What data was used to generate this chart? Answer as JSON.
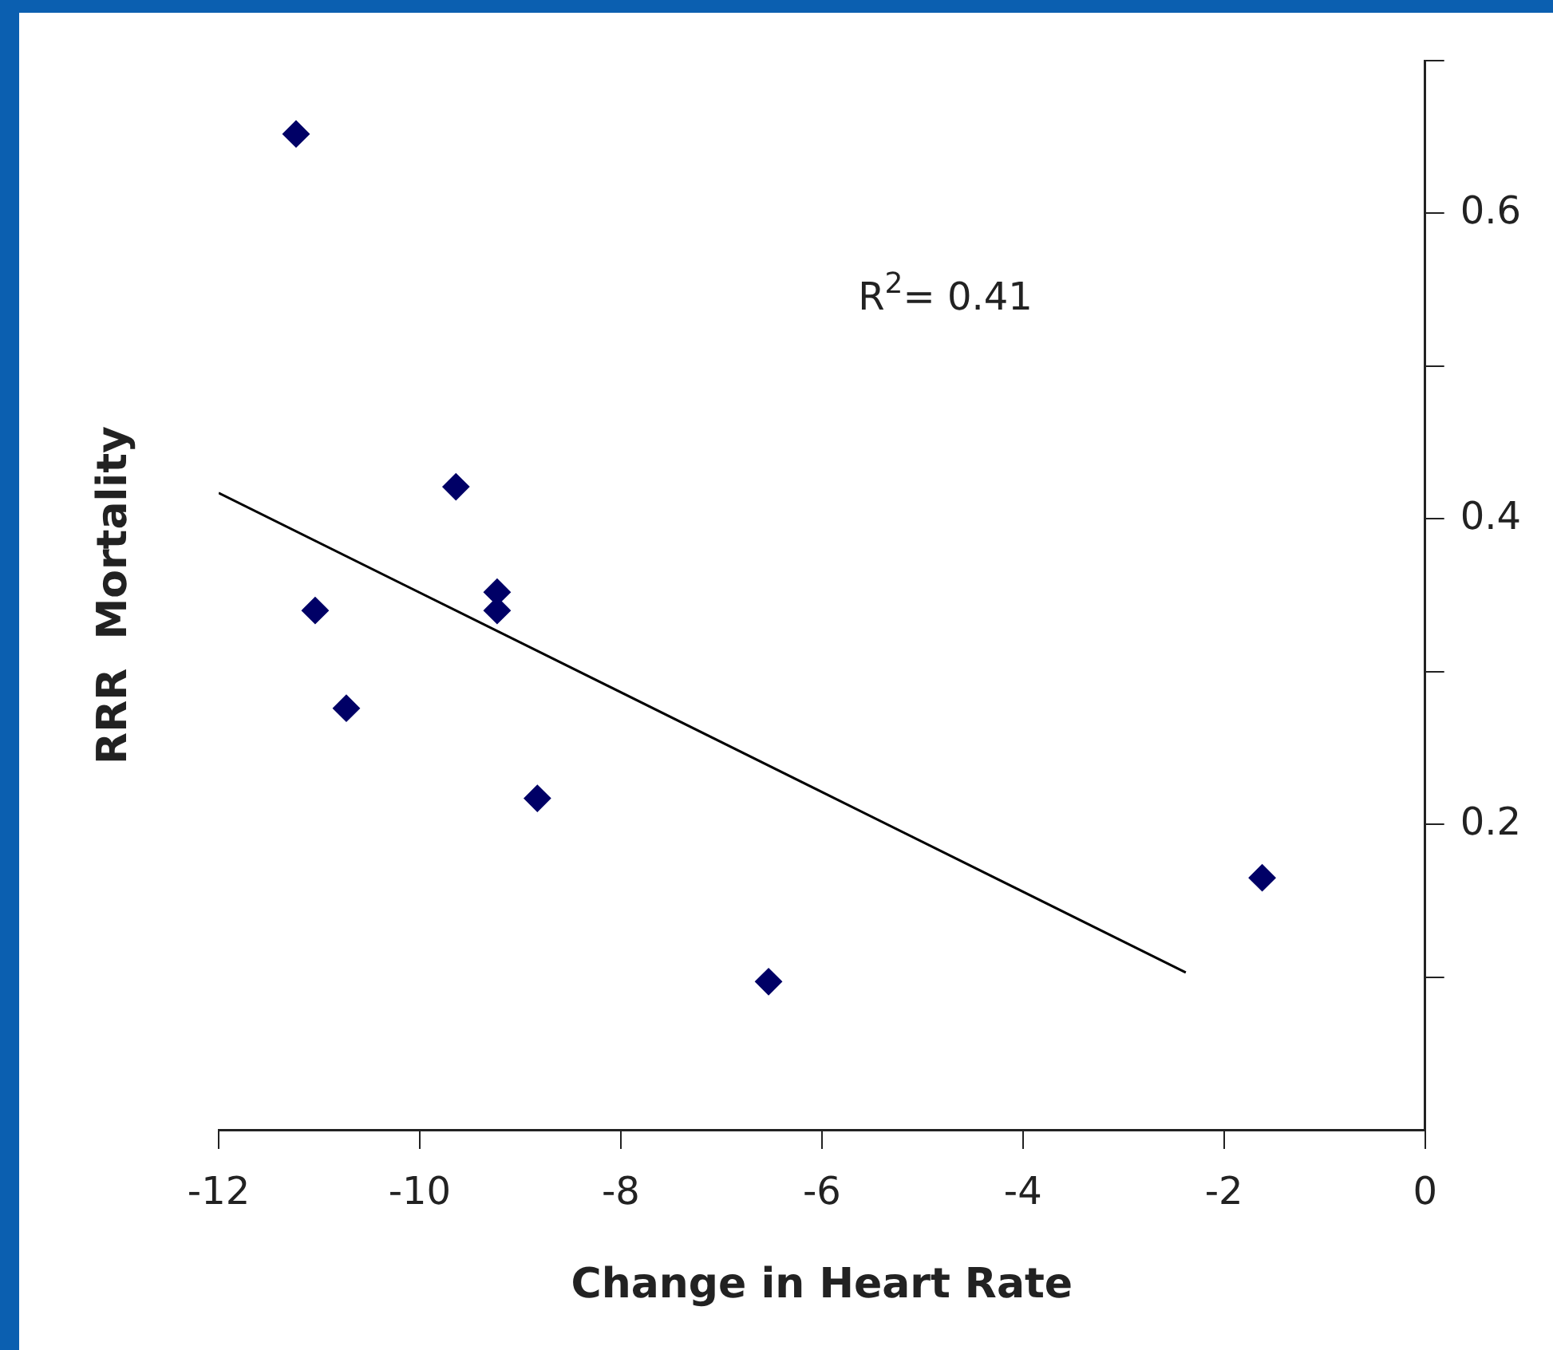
{
  "chart_data": {
    "type": "scatter",
    "xlabel": "Change in Heart Rate",
    "ylabel": "RRR  Mortality",
    "annotations": [
      "R$^{2}$= 0.41"
    ],
    "series": [
      {
        "marker": "diamond",
        "color": "#000066",
        "x": [
          -11.23,
          -11.04,
          -10.73,
          -9.64,
          -9.23,
          -9.23,
          -8.83,
          -6.53,
          -1.62
        ],
        "values": [
          0.652,
          0.34,
          0.276,
          0.421,
          0.352,
          0.34,
          0.217,
          0.097,
          0.165
        ]
      },
      {
        "type": "line",
        "color": "#000000",
        "x": [
          -12,
          -2.38
        ],
        "values": [
          0.417,
          0.103
        ]
      }
    ],
    "xlim": [
      -12,
      0
    ],
    "xticks": [
      -12,
      -10,
      -8,
      -6,
      -4,
      -2,
      0
    ],
    "ylim": [
      0,
      0.7
    ],
    "yticks": [
      {
        "value": 0.1,
        "label": null
      },
      0.2,
      {
        "value": 0.3,
        "label": null
      },
      0.4,
      {
        "value": 0.5,
        "label": null
      },
      0.6,
      {
        "value": 0.7,
        "label": null
      }
    ],
    "grid": false,
    "legend": false
  }
}
